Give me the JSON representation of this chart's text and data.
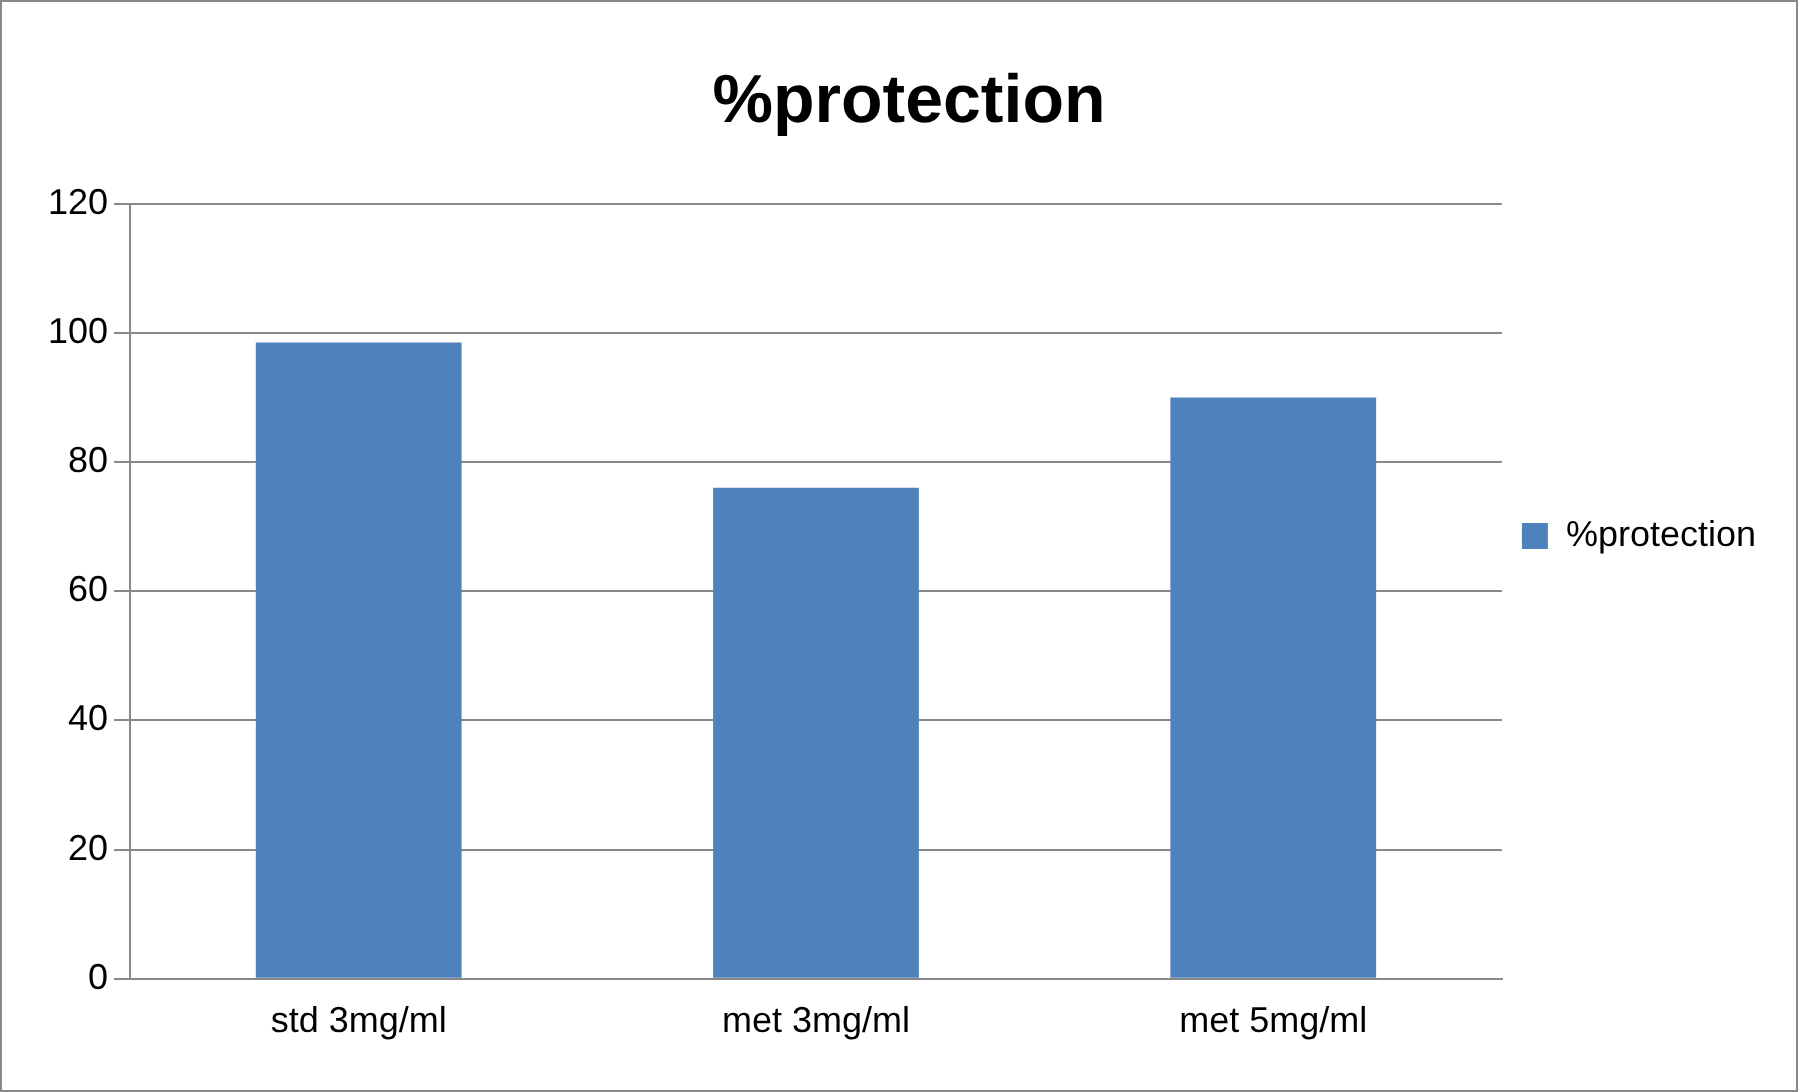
{
  "chart_data": {
    "type": "bar",
    "title": "%protection",
    "categories": [
      "std 3mg/ml",
      "met 3mg/ml",
      "met 5mg/ml"
    ],
    "series": [
      {
        "name": "%protection",
        "color": "#4f81bd",
        "values": [
          98.5,
          76,
          90
        ]
      }
    ],
    "ylim": [
      0,
      120
    ],
    "yticks": [
      0,
      20,
      40,
      60,
      80,
      100,
      120
    ],
    "grid": "y",
    "legend": "right"
  }
}
